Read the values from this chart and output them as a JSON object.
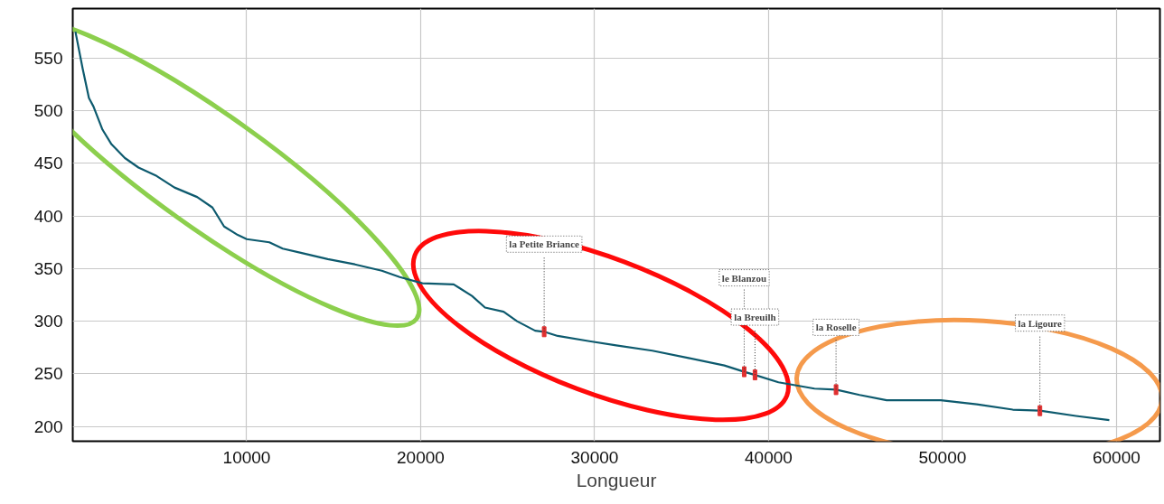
{
  "chart_data": {
    "type": "line",
    "xlabel": "Longueur",
    "xlim": [
      0,
      62500
    ],
    "ylim": [
      186,
      597
    ],
    "xticks": [
      10000,
      20000,
      30000,
      40000,
      50000,
      60000
    ],
    "yticks": [
      200,
      250,
      300,
      350,
      400,
      450,
      500,
      550
    ],
    "grid": true,
    "series": [
      {
        "color": "#0d5a6e",
        "x": [
          155,
          570,
          930,
          1190,
          1710,
          2230,
          3000,
          3780,
          4820,
          5850,
          7150,
          8030,
          8700,
          9480,
          10000,
          11300,
          12070,
          13110,
          14660,
          16220,
          17770,
          18800,
          20100,
          21900,
          22950,
          23700,
          24770,
          25540,
          26580,
          27100,
          27880,
          29700,
          31240,
          33320,
          35400,
          37460,
          38600,
          39220,
          40570,
          42640,
          43880,
          45230,
          46790,
          49900,
          51970,
          54040,
          55600,
          57670,
          59590
        ],
        "values": [
          575,
          540,
          512,
          504,
          482,
          468,
          455,
          446,
          438,
          427,
          418,
          408,
          390,
          382,
          378,
          375,
          369,
          365,
          359,
          354,
          348,
          342,
          336,
          335,
          324,
          313,
          309,
          300,
          291,
          290,
          286,
          281,
          277,
          272,
          265,
          258,
          252,
          249,
          242,
          236,
          235,
          230,
          225,
          225,
          221,
          216,
          215,
          210,
          206
        ]
      },
      {
        "type": "scatter",
        "color": "#e03030",
        "x": [
          27100,
          38600,
          39220,
          43880,
          55600
        ],
        "values": [
          290,
          252,
          249,
          235,
          215
        ]
      }
    ],
    "annotations": [
      {
        "text": "la Petite Briance",
        "x": 27100,
        "y": 290
      },
      {
        "text": "le Blanzou",
        "x": 38600,
        "y": 252
      },
      {
        "text": "la Breuilh",
        "x": 39220,
        "y": 249
      },
      {
        "text": "la Roselle",
        "x": 43880,
        "y": 235
      },
      {
        "text": "la Ligoure",
        "x": 55600,
        "y": 215
      }
    ]
  }
}
